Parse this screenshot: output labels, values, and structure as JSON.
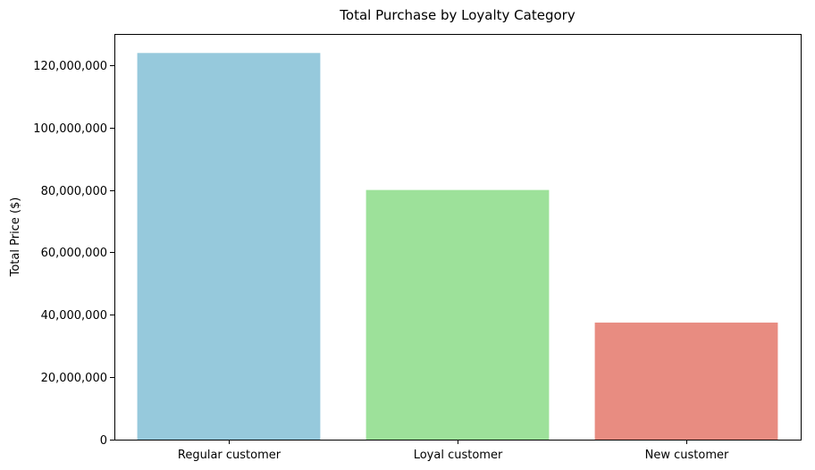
{
  "chart_data": {
    "type": "bar",
    "title": "Total Purchase by Loyalty Category",
    "xlabel": "",
    "ylabel": "Total Price ($)",
    "categories": [
      "Regular customer",
      "Loyal customer",
      "New customer"
    ],
    "values": [
      123900000,
      80000000,
      37500000
    ],
    "colors": [
      "#96c9dc",
      "#9de19a",
      "#e88c81"
    ],
    "ylim": [
      0,
      130000000
    ],
    "yticks": [
      0,
      20000000,
      40000000,
      60000000,
      80000000,
      100000000,
      120000000
    ],
    "ytick_labels": [
      "0",
      "20,000,000",
      "40,000,000",
      "60,000,000",
      "80,000,000",
      "100,000,000",
      "120,000,000"
    ],
    "grid": false,
    "legend": "none"
  }
}
